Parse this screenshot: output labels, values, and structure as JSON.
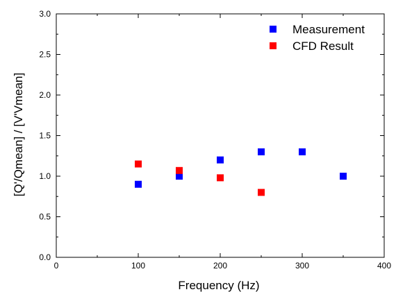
{
  "chart_data": {
    "type": "scatter",
    "title": "",
    "xlabel": "Frequency (Hz)",
    "ylabel": "[Q'/Qmean] / [V'Vmean]",
    "xlim": [
      0,
      400
    ],
    "ylim": [
      0.0,
      3.0
    ],
    "x_ticks": [
      "0",
      "100",
      "200",
      "300",
      "400"
    ],
    "y_ticks": [
      "0.0",
      "0.5",
      "1.0",
      "1.5",
      "2.0",
      "2.5",
      "3.0"
    ],
    "grid": false,
    "legend_position": "top-right",
    "series": [
      {
        "name": "Measurement",
        "color": "#0000ff",
        "marker": "square",
        "points": [
          {
            "x": 100,
            "y": 0.9
          },
          {
            "x": 150,
            "y": 1.0
          },
          {
            "x": 200,
            "y": 1.2
          },
          {
            "x": 250,
            "y": 1.3
          },
          {
            "x": 300,
            "y": 1.3
          },
          {
            "x": 350,
            "y": 1.0
          }
        ]
      },
      {
        "name": "CFD Result",
        "color": "#ff0000",
        "marker": "square",
        "points": [
          {
            "x": 100,
            "y": 1.15
          },
          {
            "x": 150,
            "y": 1.07
          },
          {
            "x": 200,
            "y": 0.98
          },
          {
            "x": 250,
            "y": 0.8
          }
        ]
      }
    ]
  }
}
